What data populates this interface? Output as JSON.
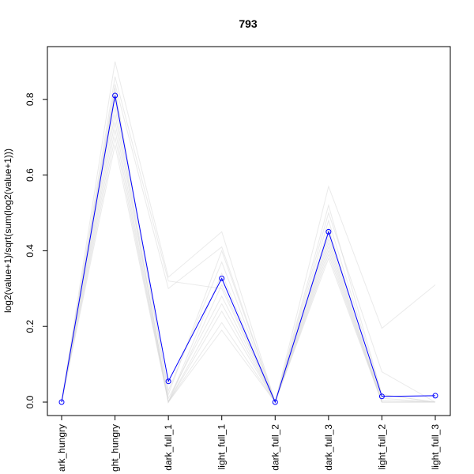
{
  "chart_data": {
    "type": "line",
    "title": "793",
    "xlabel": "",
    "ylabel": "log2(value+1)/sqrt(sum(log2(value+1)))",
    "categories": [
      "dark_hungry",
      "light_hungry",
      "dark_full_1",
      "light_full_1",
      "dark_full_2",
      "dark_full_3",
      "light_full_2",
      "light_full_3"
    ],
    "category_labels_visible": [
      "ark_hungry",
      "ght_hungry",
      "dark_full_1",
      "light_full_1",
      "dark_full_2",
      "dark_full_3",
      "light_full_2",
      "light_full_3"
    ],
    "ylim": [
      0,
      0.9
    ],
    "yticks": [
      0.0,
      0.2,
      0.4,
      0.6,
      0.8
    ],
    "ytick_labels": [
      "0.0",
      "0.2",
      "0.4",
      "0.6",
      "0.8"
    ],
    "grid": false,
    "highlight_color": "#0000ff",
    "background_color": "#d8d8d8",
    "highlight": {
      "values": [
        0.0,
        0.81,
        0.055,
        0.327,
        0.0,
        0.45,
        0.015,
        0.017
      ]
    },
    "background_series": [
      {
        "values": [
          0.0,
          0.9,
          0.33,
          0.45,
          0.0,
          0.57,
          0.195,
          0.31
        ]
      },
      {
        "values": [
          0.0,
          0.86,
          0.32,
          0.3,
          0.0,
          0.5,
          0.08,
          0.0
        ]
      },
      {
        "values": [
          0.0,
          0.84,
          0.3,
          0.41,
          0.0,
          0.48,
          0.02,
          0.0
        ]
      },
      {
        "values": [
          0.0,
          0.82,
          0.02,
          0.4,
          0.0,
          0.46,
          0.01,
          0.0
        ]
      },
      {
        "values": [
          0.0,
          0.8,
          0.0,
          0.34,
          0.0,
          0.44,
          0.005,
          0.0
        ]
      },
      {
        "values": [
          0.0,
          0.78,
          0.0,
          0.31,
          0.0,
          0.43,
          0.0,
          0.0
        ]
      },
      {
        "values": [
          0.0,
          0.76,
          0.01,
          0.28,
          0.0,
          0.42,
          0.0,
          0.0
        ]
      },
      {
        "values": [
          0.0,
          0.74,
          0.0,
          0.26,
          0.0,
          0.41,
          0.0,
          0.0
        ]
      },
      {
        "values": [
          0.0,
          0.72,
          0.0,
          0.24,
          0.0,
          0.4,
          0.0,
          0.0
        ]
      },
      {
        "values": [
          0.0,
          0.7,
          0.0,
          0.21,
          0.0,
          0.39,
          0.0,
          0.0
        ]
      },
      {
        "values": [
          0.0,
          0.68,
          0.0,
          0.19,
          0.0,
          0.38,
          0.0,
          0.0
        ]
      },
      {
        "values": [
          0.0,
          0.83,
          0.03,
          0.37,
          0.0,
          0.52,
          0.02,
          0.0
        ]
      }
    ]
  }
}
